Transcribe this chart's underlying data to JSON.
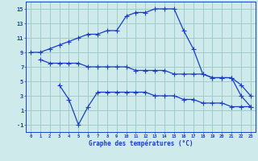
{
  "line1_x": [
    0,
    1,
    2,
    3,
    4,
    5,
    6,
    7,
    8,
    9,
    10,
    11,
    12,
    13,
    14,
    15,
    16,
    17,
    18,
    19,
    20,
    21,
    22,
    23
  ],
  "line1_y": [
    9,
    9,
    9.5,
    10,
    10.5,
    11,
    11.5,
    11.5,
    12,
    12,
    14,
    14.5,
    14.5,
    15,
    15,
    15,
    12,
    9.5,
    6,
    5.5,
    5.5,
    5.5,
    4.5,
    3
  ],
  "line2_x": [
    1,
    2,
    3,
    4,
    5,
    6,
    7,
    8,
    9,
    10,
    11,
    12,
    13,
    14,
    15,
    16,
    17,
    18,
    19,
    20,
    21,
    22,
    23
  ],
  "line2_y": [
    8,
    7.5,
    7.5,
    7.5,
    7.5,
    7,
    7,
    7,
    7,
    7,
    6.5,
    6.5,
    6.5,
    6.5,
    6,
    6,
    6,
    6,
    5.5,
    5.5,
    5.5,
    3,
    1.5
  ],
  "line3_x": [
    3,
    4,
    5,
    6,
    7,
    8,
    9,
    10,
    11,
    12,
    13,
    14,
    15,
    16,
    17,
    18,
    19,
    20,
    21,
    22,
    23
  ],
  "line3_y": [
    4.5,
    2.5,
    -1,
    1.5,
    3.5,
    3.5,
    3.5,
    3.5,
    3.5,
    3.5,
    3,
    3,
    3,
    2.5,
    2.5,
    2,
    2,
    2,
    1.5,
    1.5,
    1.5
  ],
  "line_color": "#1a3fc4",
  "bg_color": "#ceeaea",
  "grid_color": "#a0cccc",
  "xlabel": "Graphe des températures (°C)",
  "xlabel_color": "#1a3fc4",
  "tick_color": "#1a3fc4",
  "xlim": [
    -0.5,
    23.5
  ],
  "ylim": [
    -2,
    16
  ],
  "yticks": [
    -1,
    1,
    3,
    5,
    7,
    9,
    11,
    13,
    15
  ],
  "xticks": [
    0,
    1,
    2,
    3,
    4,
    5,
    6,
    7,
    8,
    9,
    10,
    11,
    12,
    13,
    14,
    15,
    16,
    17,
    18,
    19,
    20,
    21,
    22,
    23
  ]
}
